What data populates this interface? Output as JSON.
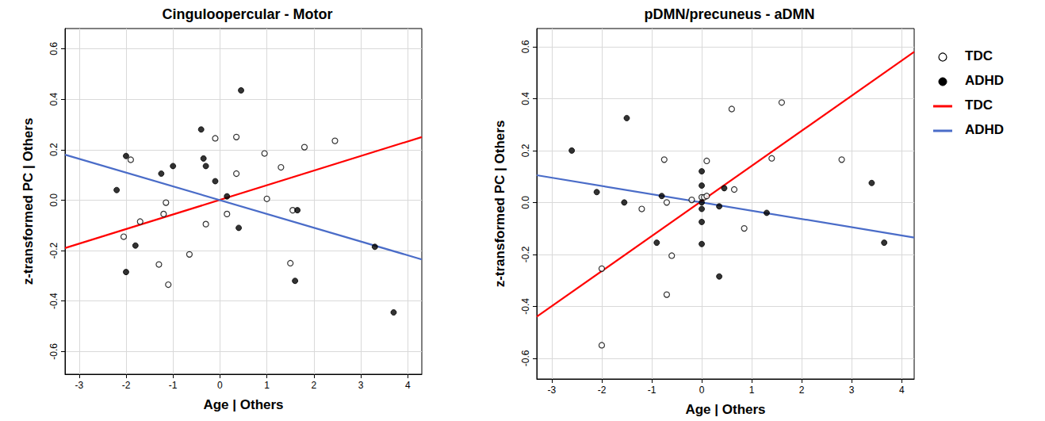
{
  "chart_data": [
    {
      "type": "scatter",
      "title": "Cinguloopercular - Motor",
      "x_label": "Age | Others",
      "y_label": "z-transformed PC | Others",
      "xlim": [
        -3.3,
        4.3
      ],
      "ylim": [
        -0.69,
        0.68
      ],
      "xticks": [
        -3,
        -2,
        -1,
        0,
        1,
        2,
        3,
        4
      ],
      "yticks": [
        -0.6,
        -0.4,
        -0.2,
        {
          "value": 0,
          "label": "0.0"
        },
        0.2,
        0.4,
        0.6
      ],
      "grid": true,
      "series": [
        {
          "name": "TDC",
          "type": "scatter",
          "marker": "open_circle",
          "color": "#000000",
          "x": [
            -2.05,
            -1.9,
            -1.7,
            -1.3,
            -1.2,
            -1.15,
            -1.1,
            -0.65,
            -0.3,
            -0.1,
            0.15,
            0.35,
            0.35,
            0.95,
            1.0,
            1.3,
            1.5,
            1.55,
            1.8,
            2.45
          ],
          "values": [
            -0.145,
            0.16,
            -0.085,
            -0.255,
            -0.055,
            -0.01,
            -0.335,
            -0.215,
            -0.095,
            0.245,
            -0.055,
            0.25,
            0.105,
            0.185,
            0.005,
            0.13,
            -0.25,
            -0.04,
            0.21,
            0.235
          ]
        },
        {
          "name": "ADHD",
          "type": "scatter",
          "marker": "filled_circle",
          "color": "#000000",
          "x": [
            -2.2,
            -2.0,
            -2.0,
            -1.8,
            -1.25,
            -1.0,
            -0.4,
            -0.35,
            -0.3,
            -0.1,
            0.15,
            0.4,
            0.45,
            1.6,
            1.65,
            3.3,
            3.7
          ],
          "values": [
            0.04,
            0.175,
            -0.285,
            -0.18,
            0.105,
            0.135,
            0.28,
            0.165,
            0.135,
            0.075,
            0.015,
            -0.11,
            0.435,
            -0.32,
            -0.04,
            -0.185,
            -0.445
          ]
        },
        {
          "name": "TDC",
          "type": "line",
          "line_style": "solid",
          "color": "#ff0000",
          "x": [
            -3.3,
            4.3
          ],
          "values": [
            -0.19,
            0.25
          ]
        },
        {
          "name": "ADHD",
          "type": "line",
          "line_style": "solid",
          "color": "#4a6cc8",
          "x": [
            -3.3,
            4.3
          ],
          "values": [
            0.18,
            -0.235
          ]
        }
      ]
    },
    {
      "type": "scatter",
      "title": "pDMN/precuneus - aDMN",
      "x_label": "Age | Others",
      "y_label": "z-transformed PC | Others",
      "xlim": [
        -3.3,
        4.25
      ],
      "ylim": [
        -0.68,
        0.67
      ],
      "xticks": [
        -3,
        -2,
        -1,
        0,
        1,
        2,
        3,
        4
      ],
      "yticks": [
        -0.6,
        -0.4,
        -0.2,
        {
          "value": 0,
          "label": "0.0"
        },
        0.2,
        0.4,
        0.6
      ],
      "grid": true,
      "legend": "right",
      "series": [
        {
          "name": "TDC",
          "type": "scatter",
          "marker": "open_circle",
          "color": "#000000",
          "x": [
            -2.0,
            -2.0,
            -1.2,
            -0.75,
            -0.7,
            -0.7,
            -0.6,
            -0.2,
            0.0,
            0.05,
            0.1,
            0.1,
            0.6,
            0.65,
            0.85,
            1.4,
            1.6,
            2.8
          ],
          "values": [
            -0.55,
            -0.255,
            -0.025,
            0.165,
            0.0,
            -0.355,
            -0.205,
            0.01,
            0.02,
            0.02,
            0.16,
            0.025,
            0.36,
            0.05,
            -0.1,
            0.17,
            0.385,
            0.165
          ]
        },
        {
          "name": "ADHD",
          "type": "scatter",
          "marker": "filled_circle",
          "color": "#000000",
          "x": [
            -2.6,
            -2.1,
            -1.5,
            -1.55,
            -0.9,
            -0.8,
            0.0,
            0.0,
            0.0,
            0.0,
            0.0,
            0.0,
            0.35,
            0.35,
            0.45,
            1.3,
            3.4,
            3.65
          ],
          "values": [
            0.2,
            0.04,
            0.325,
            0.0,
            -0.155,
            0.025,
            0.12,
            0.065,
            0.0,
            -0.025,
            -0.075,
            -0.16,
            -0.015,
            -0.285,
            0.055,
            -0.04,
            0.075,
            -0.155
          ]
        },
        {
          "name": "TDC",
          "type": "line",
          "line_style": "solid",
          "color": "#ff0000",
          "x": [
            -3.3,
            4.25
          ],
          "values": [
            -0.44,
            0.58
          ]
        },
        {
          "name": "ADHD",
          "type": "line",
          "line_style": "solid",
          "color": "#4a6cc8",
          "x": [
            -3.3,
            4.25
          ],
          "values": [
            0.105,
            -0.135
          ]
        }
      ]
    }
  ]
}
